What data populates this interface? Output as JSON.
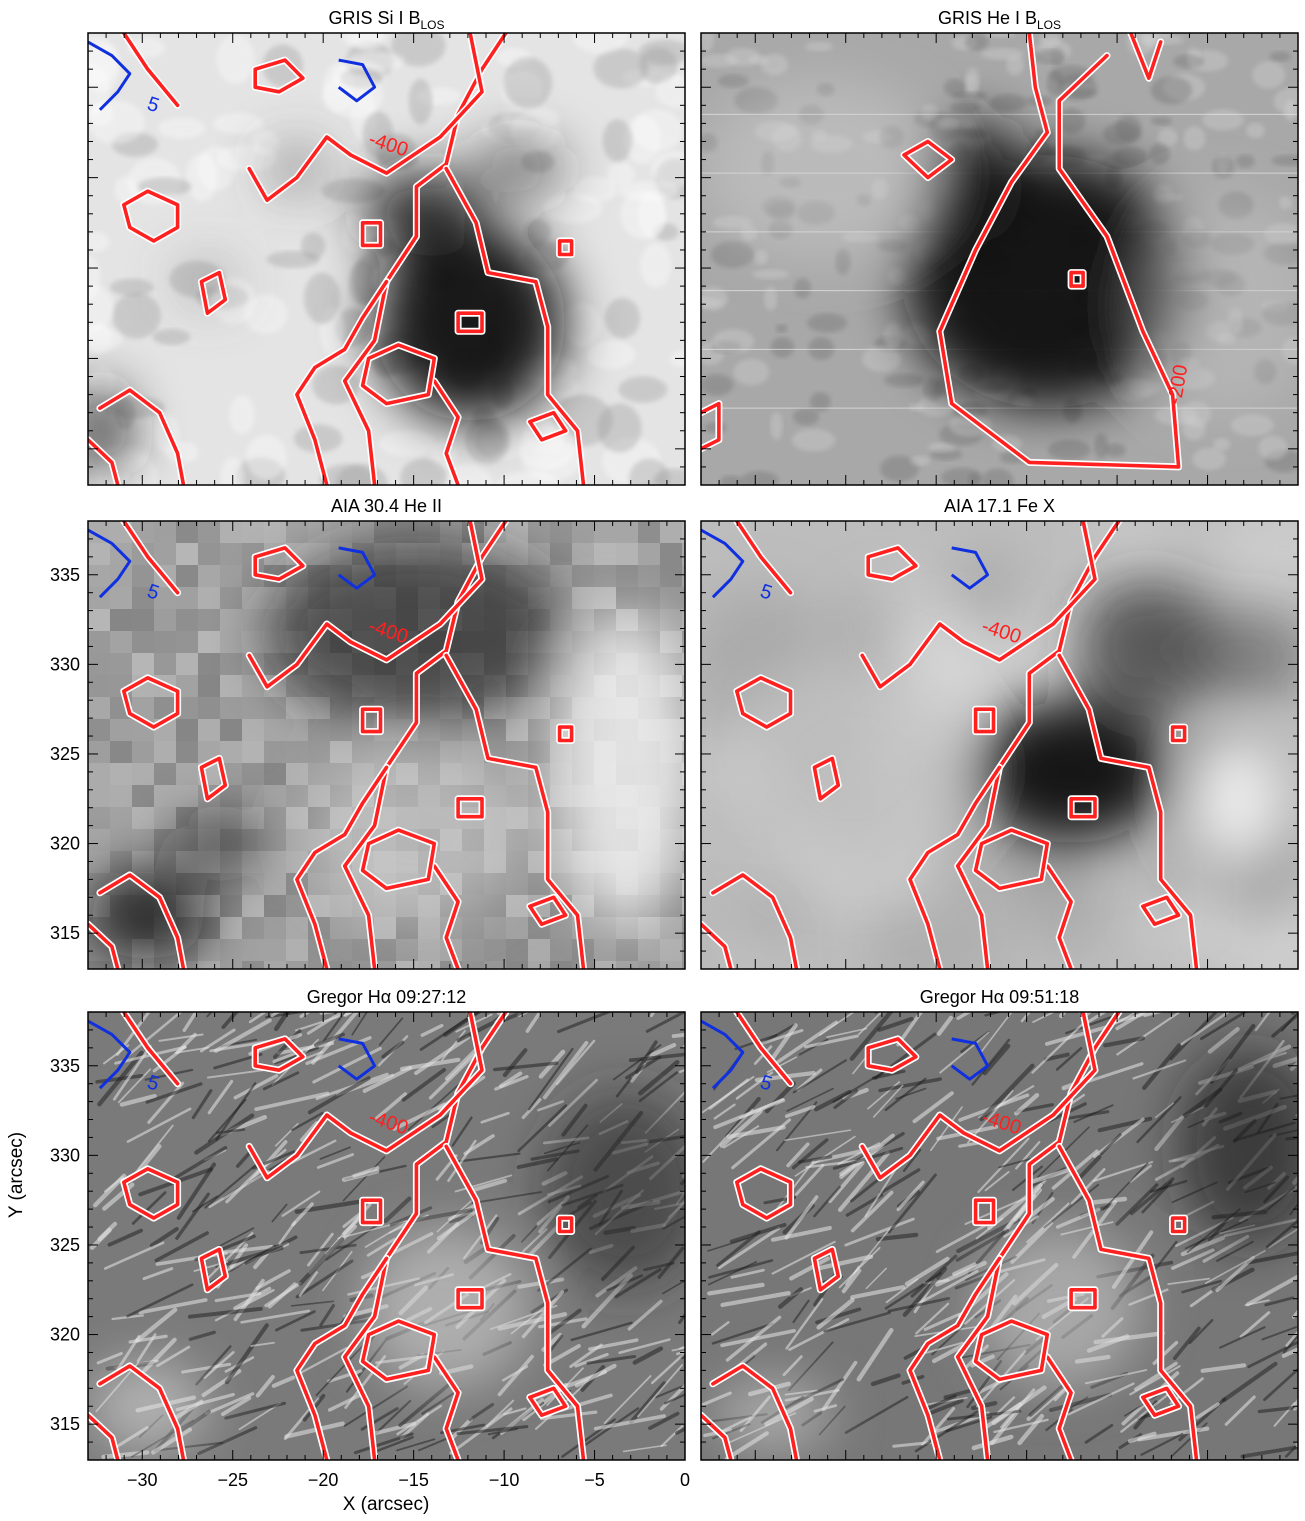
{
  "figure": {
    "xlabel": "X (arcsec)",
    "ylabel": "Y (arcsec)"
  },
  "chart_data": [
    {
      "type": "heatmap",
      "title": "GRIS Si I B",
      "title_subscript": "LOS",
      "xlim": [
        -33,
        0
      ],
      "ylim": [
        313,
        338
      ],
      "xticks": [],
      "yticks": [],
      "grid": false,
      "colormap": "grayscale",
      "contour_labels": [
        {
          "text": "-400",
          "x": -16.5,
          "y": 331.5,
          "color": "#ff2020"
        },
        {
          "text": "5",
          "x": -29.5,
          "y": 333.7,
          "color": "#1030e0"
        }
      ]
    },
    {
      "type": "heatmap",
      "title": "GRIS He I B",
      "title_subscript": "LOS",
      "xlim": [
        -33,
        0
      ],
      "ylim": [
        313,
        338
      ],
      "xticks": [],
      "yticks": [],
      "grid": false,
      "colormap": "grayscale",
      "contour_labels": [
        {
          "text": "-200",
          "x": -6.3,
          "y": 318.5,
          "color": "#ff2020"
        }
      ]
    },
    {
      "type": "heatmap",
      "title": "AIA 30.4 He II",
      "xlim": [
        -33,
        0
      ],
      "ylim": [
        313,
        338
      ],
      "xticks": [],
      "yticks": [
        {
          "value": 335,
          "label": "335"
        },
        {
          "value": 330,
          "label": "330"
        },
        {
          "value": 325,
          "label": "325"
        },
        {
          "value": 320,
          "label": "320"
        },
        {
          "value": 315,
          "label": "315"
        }
      ],
      "grid": false,
      "colormap": "grayscale",
      "contour_labels": [
        {
          "text": "-400",
          "x": -16.5,
          "y": 331.5,
          "color": "#ff2020"
        },
        {
          "text": "5",
          "x": -29.5,
          "y": 333.7,
          "color": "#1030e0"
        }
      ]
    },
    {
      "type": "heatmap",
      "title": "AIA 17.1 Fe X",
      "xlim": [
        -33,
        0
      ],
      "ylim": [
        313,
        338
      ],
      "xticks": [],
      "yticks": [],
      "grid": false,
      "colormap": "grayscale",
      "contour_labels": [
        {
          "text": "-400",
          "x": -16.5,
          "y": 331.5,
          "color": "#ff2020"
        },
        {
          "text": "5",
          "x": -29.5,
          "y": 333.7,
          "color": "#1030e0"
        }
      ]
    },
    {
      "type": "heatmap",
      "title": "Gregor Hα 09:27:12",
      "xlim": [
        -33,
        0
      ],
      "ylim": [
        313,
        338
      ],
      "xticks": [
        {
          "value": -30,
          "label": "−30"
        },
        {
          "value": -25,
          "label": "−25"
        },
        {
          "value": -20,
          "label": "−20"
        },
        {
          "value": -15,
          "label": "−15"
        },
        {
          "value": -10,
          "label": "−10"
        },
        {
          "value": -5,
          "label": "−5"
        },
        {
          "value": 0,
          "label": "0"
        }
      ],
      "yticks": [
        {
          "value": 335,
          "label": "335"
        },
        {
          "value": 330,
          "label": "330"
        },
        {
          "value": 325,
          "label": "325"
        },
        {
          "value": 320,
          "label": "320"
        },
        {
          "value": 315,
          "label": "315"
        }
      ],
      "grid": false,
      "colormap": "grayscale",
      "contour_labels": [
        {
          "text": "-400",
          "x": -16.5,
          "y": 331.5,
          "color": "#ff2020"
        },
        {
          "text": "5",
          "x": -29.5,
          "y": 333.7,
          "color": "#1030e0"
        }
      ]
    },
    {
      "type": "heatmap",
      "title": "Gregor Hα 09:51:18",
      "xlim": [
        -33,
        0
      ],
      "ylim": [
        313,
        338
      ],
      "xticks": [],
      "yticks": [],
      "grid": false,
      "colormap": "grayscale",
      "contour_labels": [
        {
          "text": "-400",
          "x": -16.5,
          "y": 331.5,
          "color": "#ff2020"
        },
        {
          "text": "5",
          "x": -29.5,
          "y": 333.7,
          "color": "#1030e0"
        }
      ]
    }
  ]
}
